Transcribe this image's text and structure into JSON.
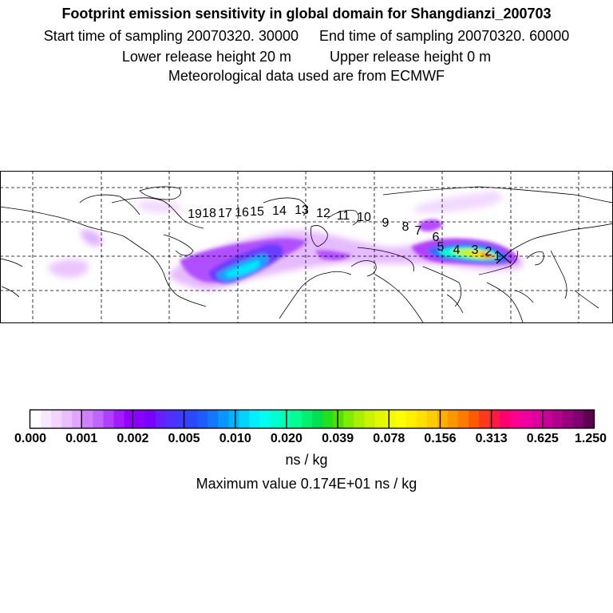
{
  "header": {
    "title": "Footprint emission sensitivity in global domain for Shangdianzi_200703",
    "start_label": "Start time of sampling 20070320. 30000",
    "end_label": "End time of sampling 20070320. 60000",
    "lower_label": "Lower release height   20 m",
    "upper_label": "Upper release height    0 m",
    "met_label": "Meteorological data used are from ECMWF"
  },
  "map": {
    "trajectory_labels": [
      "1",
      "2",
      "3",
      "4",
      "5",
      "6",
      "7",
      "8",
      "9",
      "10",
      "11",
      "12",
      "13",
      "14",
      "15",
      "16",
      "17",
      "18",
      "19"
    ]
  },
  "colorbar": {
    "tick_labels": [
      "0.000",
      "0.001",
      "0.002",
      "0.005",
      "0.010",
      "0.020",
      "0.039",
      "0.078",
      "0.156",
      "0.313",
      "0.625",
      "1.250"
    ],
    "colors": [
      "#ffffff",
      "#f8e8ff",
      "#f2d4ff",
      "#eabfff",
      "#e0a6ff",
      "#cf80ff",
      "#c066ff",
      "#b040ff",
      "#a21aff",
      "#9400ff",
      "#8a00ff",
      "#7a00ff",
      "#6620ff",
      "#5030ff",
      "#3c3cff",
      "#2a48ff",
      "#1e5cff",
      "#1478ff",
      "#0a96ff",
      "#00b4ff",
      "#00d4ff",
      "#00f0ff",
      "#00ffee",
      "#00ffd0",
      "#00ffb0",
      "#00ff90",
      "#00f070",
      "#00e050",
      "#20e020",
      "#50e000",
      "#80ec00",
      "#a8f000",
      "#c8f400",
      "#e0f800",
      "#f0fc00",
      "#ffff00",
      "#fff000",
      "#ffe000",
      "#ffcc00",
      "#ffb000",
      "#ff9600",
      "#ff7a00",
      "#ff5a00",
      "#ff3a1a",
      "#ff1a40",
      "#ff0070",
      "#ff0090",
      "#f000a0",
      "#e000a0",
      "#c80098",
      "#b0008c",
      "#980080",
      "#800070",
      "#600050"
    ],
    "units": "ns / kg"
  },
  "max_value_label": "Maximum value  0.174E+01 ns / kg"
}
